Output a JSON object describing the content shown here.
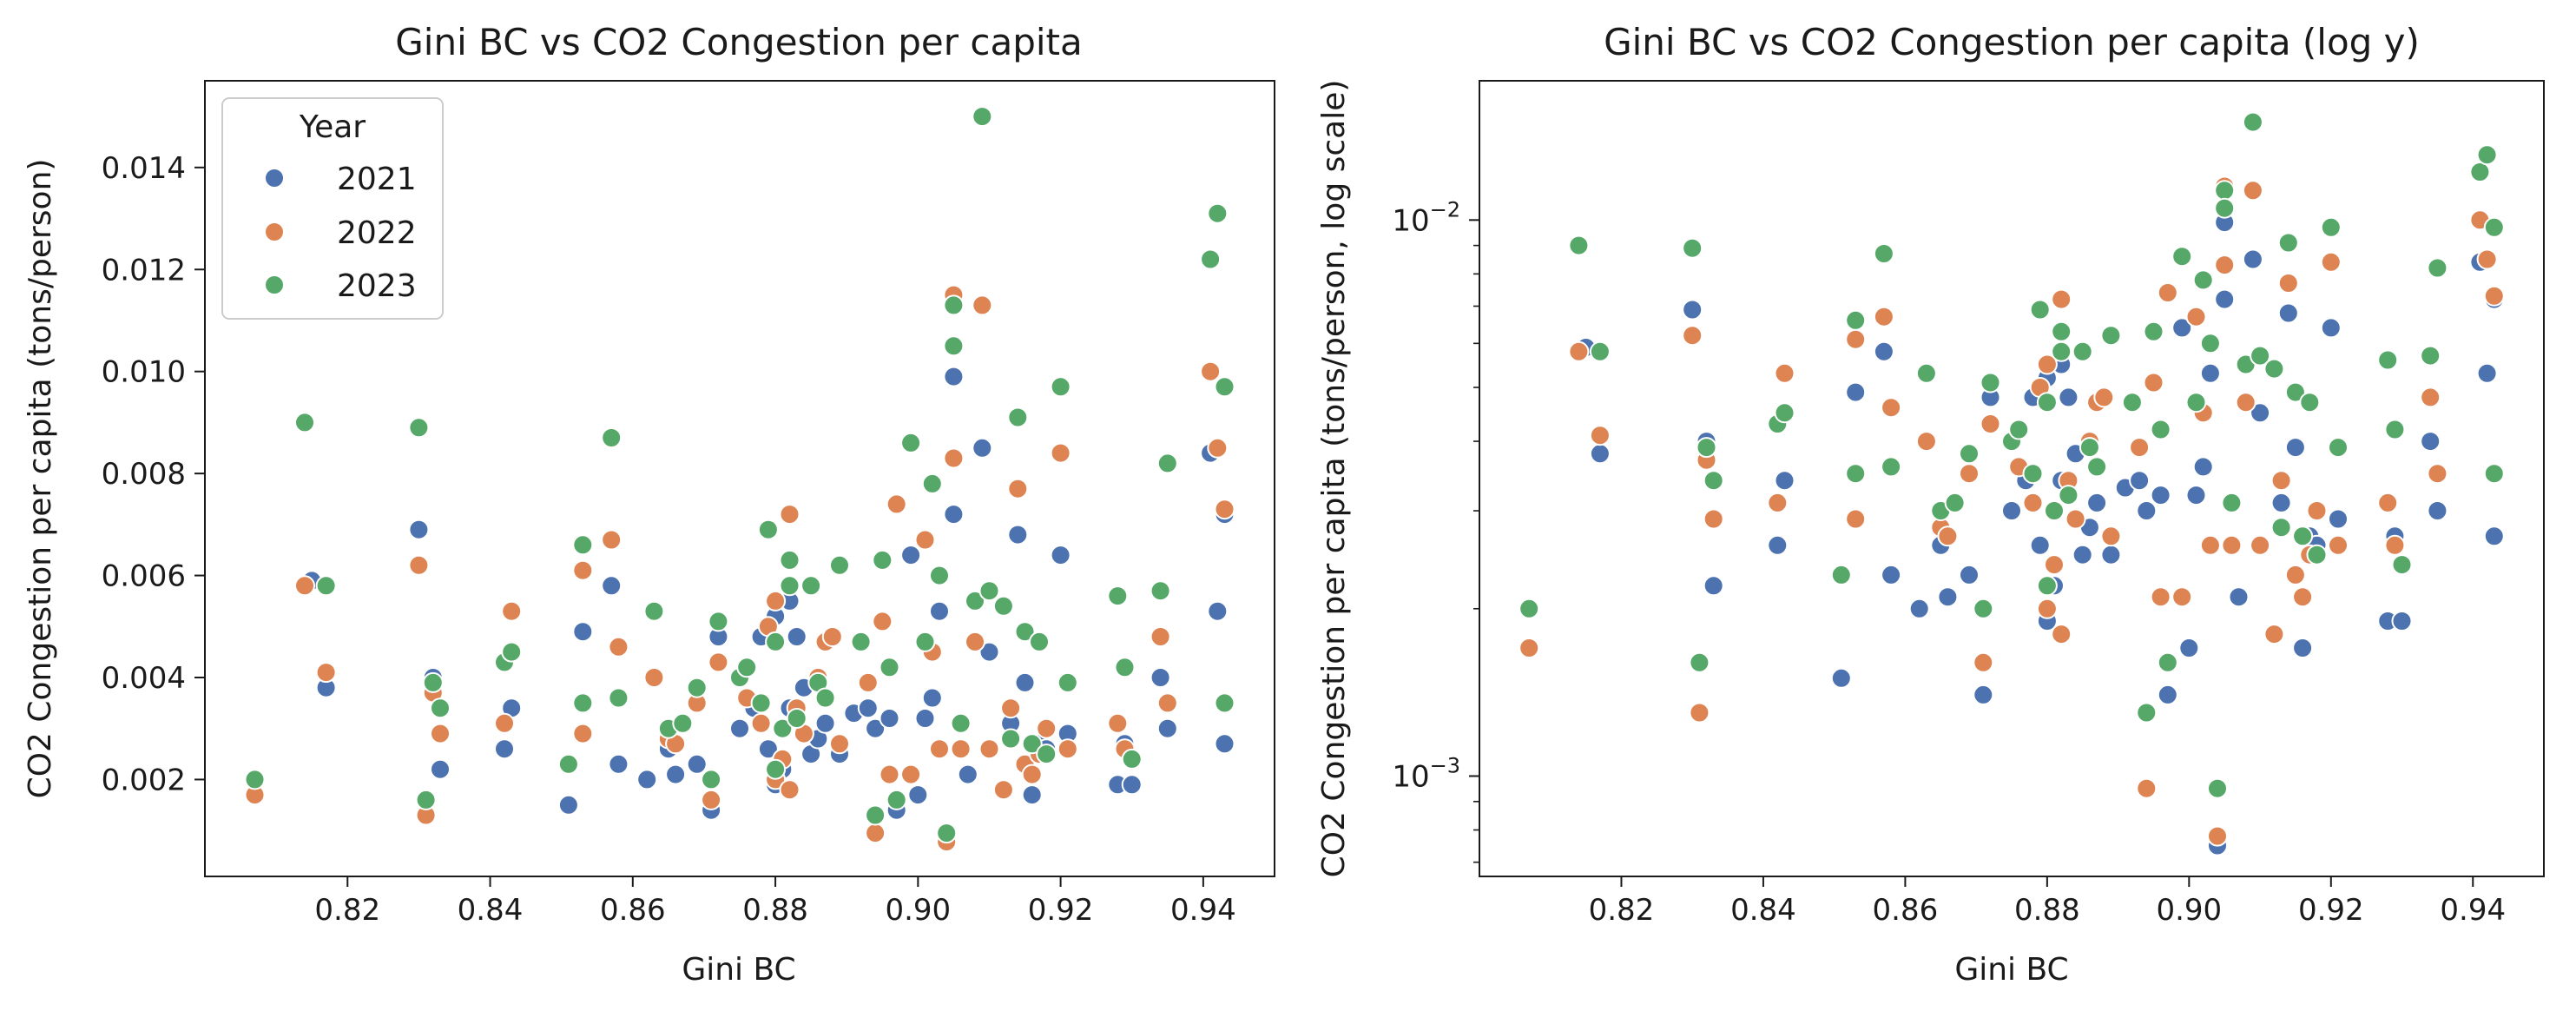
{
  "colors": {
    "2021": "#4c72b0",
    "2022": "#dd8452",
    "2023": "#55a868"
  },
  "chart_data": [
    {
      "type": "scatter",
      "title": "Gini BC vs CO2 Congestion per capita",
      "xlabel": "Gini BC",
      "ylabel": "CO2 Congestion per capita (tons/person)",
      "xlim": [
        0.8,
        0.95
      ],
      "ylim": [
        0.0001,
        0.0157
      ],
      "yscale": "linear",
      "xticks": [
        "0.82",
        "0.84",
        "0.86",
        "0.88",
        "0.90",
        "0.92",
        "0.94"
      ],
      "yticks": [
        "0.002",
        "0.004",
        "0.006",
        "0.008",
        "0.010",
        "0.012",
        "0.014"
      ],
      "legend": {
        "title": "Year",
        "placement": "top-left",
        "entries": [
          "2021",
          "2022",
          "2023"
        ]
      }
    },
    {
      "type": "scatter",
      "title": "Gini BC vs CO2 Congestion per capita (log y)",
      "xlabel": "Gini BC",
      "ylabel": "CO2 Congestion per capita (tons/person, log scale)",
      "xlim": [
        0.8,
        0.95
      ],
      "ylim": [
        0.00066,
        0.0178
      ],
      "yscale": "log",
      "xticks": [
        "0.82",
        "0.84",
        "0.86",
        "0.88",
        "0.90",
        "0.92",
        "0.94"
      ],
      "yticks": [
        "10^-3",
        "10^-2"
      ]
    }
  ],
  "series": [
    {
      "name": "2021",
      "points": [
        [
          0.815,
          0.0059
        ],
        [
          0.817,
          0.0038
        ],
        [
          0.83,
          0.0069
        ],
        [
          0.832,
          0.004
        ],
        [
          0.833,
          0.0022
        ],
        [
          0.842,
          0.0026
        ],
        [
          0.843,
          0.0034
        ],
        [
          0.851,
          0.0015
        ],
        [
          0.853,
          0.0049
        ],
        [
          0.857,
          0.0058
        ],
        [
          0.858,
          0.0023
        ],
        [
          0.862,
          0.002
        ],
        [
          0.865,
          0.0026
        ],
        [
          0.866,
          0.0021
        ],
        [
          0.869,
          0.0023
        ],
        [
          0.871,
          0.0014
        ],
        [
          0.872,
          0.0048
        ],
        [
          0.875,
          0.003
        ],
        [
          0.877,
          0.0034
        ],
        [
          0.878,
          0.0048
        ],
        [
          0.879,
          0.0026
        ],
        [
          0.88,
          0.0019
        ],
        [
          0.88,
          0.0052
        ],
        [
          0.881,
          0.0022
        ],
        [
          0.882,
          0.0055
        ],
        [
          0.882,
          0.0034
        ],
        [
          0.883,
          0.0048
        ],
        [
          0.884,
          0.0038
        ],
        [
          0.885,
          0.0025
        ],
        [
          0.886,
          0.0028
        ],
        [
          0.887,
          0.0047
        ],
        [
          0.887,
          0.0031
        ],
        [
          0.889,
          0.0025
        ],
        [
          0.891,
          0.0033
        ],
        [
          0.893,
          0.0034
        ],
        [
          0.894,
          0.003
        ],
        [
          0.896,
          0.0032
        ],
        [
          0.897,
          0.0014
        ],
        [
          0.899,
          0.0064
        ],
        [
          0.9,
          0.0017
        ],
        [
          0.901,
          0.0032
        ],
        [
          0.902,
          0.0036
        ],
        [
          0.903,
          0.0053
        ],
        [
          0.904,
          0.00075
        ],
        [
          0.905,
          0.0072
        ],
        [
          0.905,
          0.0099
        ],
        [
          0.906,
          0.0031
        ],
        [
          0.907,
          0.0021
        ],
        [
          0.909,
          0.0085
        ],
        [
          0.91,
          0.0045
        ],
        [
          0.912,
          0.0018
        ],
        [
          0.913,
          0.0031
        ],
        [
          0.914,
          0.0068
        ],
        [
          0.915,
          0.0039
        ],
        [
          0.916,
          0.0017
        ],
        [
          0.917,
          0.0027
        ],
        [
          0.918,
          0.0026
        ],
        [
          0.92,
          0.0064
        ],
        [
          0.921,
          0.0029
        ],
        [
          0.928,
          0.0019
        ],
        [
          0.929,
          0.0027
        ],
        [
          0.93,
          0.0019
        ],
        [
          0.934,
          0.004
        ],
        [
          0.935,
          0.003
        ],
        [
          0.941,
          0.0084
        ],
        [
          0.942,
          0.0053
        ],
        [
          0.943,
          0.0027
        ],
        [
          0.943,
          0.0072
        ]
      ]
    },
    {
      "name": "2022",
      "points": [
        [
          0.807,
          0.0017
        ],
        [
          0.814,
          0.0058
        ],
        [
          0.817,
          0.0041
        ],
        [
          0.83,
          0.0062
        ],
        [
          0.831,
          0.0013
        ],
        [
          0.832,
          0.0037
        ],
        [
          0.833,
          0.0029
        ],
        [
          0.842,
          0.0031
        ],
        [
          0.843,
          0.0053
        ],
        [
          0.853,
          0.0061
        ],
        [
          0.853,
          0.0029
        ],
        [
          0.857,
          0.0067
        ],
        [
          0.858,
          0.0046
        ],
        [
          0.863,
          0.004
        ],
        [
          0.865,
          0.0028
        ],
        [
          0.866,
          0.0027
        ],
        [
          0.869,
          0.0035
        ],
        [
          0.871,
          0.0016
        ],
        [
          0.872,
          0.0043
        ],
        [
          0.875,
          0.004
        ],
        [
          0.876,
          0.0036
        ],
        [
          0.878,
          0.0031
        ],
        [
          0.879,
          0.005
        ],
        [
          0.88,
          0.0055
        ],
        [
          0.88,
          0.002
        ],
        [
          0.881,
          0.0024
        ],
        [
          0.882,
          0.0072
        ],
        [
          0.882,
          0.0018
        ],
        [
          0.883,
          0.0034
        ],
        [
          0.884,
          0.0029
        ],
        [
          0.886,
          0.004
        ],
        [
          0.887,
          0.0047
        ],
        [
          0.888,
          0.0048
        ],
        [
          0.889,
          0.0027
        ],
        [
          0.893,
          0.0039
        ],
        [
          0.894,
          0.00095
        ],
        [
          0.895,
          0.0051
        ],
        [
          0.896,
          0.0021
        ],
        [
          0.897,
          0.0074
        ],
        [
          0.899,
          0.0021
        ],
        [
          0.901,
          0.0067
        ],
        [
          0.902,
          0.0045
        ],
        [
          0.903,
          0.0026
        ],
        [
          0.904,
          0.00078
        ],
        [
          0.905,
          0.0083
        ],
        [
          0.905,
          0.0115
        ],
        [
          0.906,
          0.0026
        ],
        [
          0.908,
          0.0047
        ],
        [
          0.909,
          0.0113
        ],
        [
          0.91,
          0.0026
        ],
        [
          0.912,
          0.0018
        ],
        [
          0.913,
          0.0034
        ],
        [
          0.914,
          0.0077
        ],
        [
          0.915,
          0.0023
        ],
        [
          0.916,
          0.0021
        ],
        [
          0.917,
          0.0025
        ],
        [
          0.918,
          0.003
        ],
        [
          0.92,
          0.0084
        ],
        [
          0.921,
          0.0026
        ],
        [
          0.928,
          0.0031
        ],
        [
          0.929,
          0.0026
        ],
        [
          0.934,
          0.0048
        ],
        [
          0.935,
          0.0035
        ],
        [
          0.941,
          0.01
        ],
        [
          0.942,
          0.0085
        ],
        [
          0.943,
          0.0073
        ],
        [
          0.943,
          0.0035
        ]
      ]
    },
    {
      "name": "2023",
      "points": [
        [
          0.807,
          0.002
        ],
        [
          0.814,
          0.009
        ],
        [
          0.817,
          0.0058
        ],
        [
          0.83,
          0.0089
        ],
        [
          0.831,
          0.0016
        ],
        [
          0.832,
          0.0039
        ],
        [
          0.833,
          0.0034
        ],
        [
          0.842,
          0.0043
        ],
        [
          0.843,
          0.0045
        ],
        [
          0.851,
          0.0023
        ],
        [
          0.853,
          0.0066
        ],
        [
          0.853,
          0.0035
        ],
        [
          0.857,
          0.0087
        ],
        [
          0.858,
          0.0036
        ],
        [
          0.863,
          0.0053
        ],
        [
          0.865,
          0.003
        ],
        [
          0.867,
          0.0031
        ],
        [
          0.869,
          0.0038
        ],
        [
          0.871,
          0.002
        ],
        [
          0.872,
          0.0051
        ],
        [
          0.875,
          0.004
        ],
        [
          0.876,
          0.0042
        ],
        [
          0.878,
          0.0035
        ],
        [
          0.879,
          0.0069
        ],
        [
          0.88,
          0.0047
        ],
        [
          0.88,
          0.0022
        ],
        [
          0.881,
          0.003
        ],
        [
          0.882,
          0.0063
        ],
        [
          0.882,
          0.0058
        ],
        [
          0.883,
          0.0032
        ],
        [
          0.885,
          0.0058
        ],
        [
          0.886,
          0.0039
        ],
        [
          0.887,
          0.0036
        ],
        [
          0.889,
          0.0062
        ],
        [
          0.892,
          0.0047
        ],
        [
          0.894,
          0.0013
        ],
        [
          0.895,
          0.0063
        ],
        [
          0.896,
          0.0042
        ],
        [
          0.897,
          0.0016
        ],
        [
          0.899,
          0.0086
        ],
        [
          0.901,
          0.0047
        ],
        [
          0.902,
          0.0078
        ],
        [
          0.903,
          0.006
        ],
        [
          0.904,
          0.00095
        ],
        [
          0.905,
          0.0113
        ],
        [
          0.905,
          0.0105
        ],
        [
          0.906,
          0.0031
        ],
        [
          0.908,
          0.0055
        ],
        [
          0.909,
          0.015
        ],
        [
          0.91,
          0.0057
        ],
        [
          0.912,
          0.0054
        ],
        [
          0.913,
          0.0028
        ],
        [
          0.914,
          0.0091
        ],
        [
          0.915,
          0.0049
        ],
        [
          0.916,
          0.0027
        ],
        [
          0.917,
          0.0047
        ],
        [
          0.918,
          0.0025
        ],
        [
          0.92,
          0.0097
        ],
        [
          0.921,
          0.0039
        ],
        [
          0.928,
          0.0056
        ],
        [
          0.929,
          0.0042
        ],
        [
          0.93,
          0.0024
        ],
        [
          0.934,
          0.0057
        ],
        [
          0.935,
          0.0082
        ],
        [
          0.941,
          0.0122
        ],
        [
          0.942,
          0.0131
        ],
        [
          0.943,
          0.0097
        ],
        [
          0.943,
          0.0035
        ]
      ]
    }
  ]
}
